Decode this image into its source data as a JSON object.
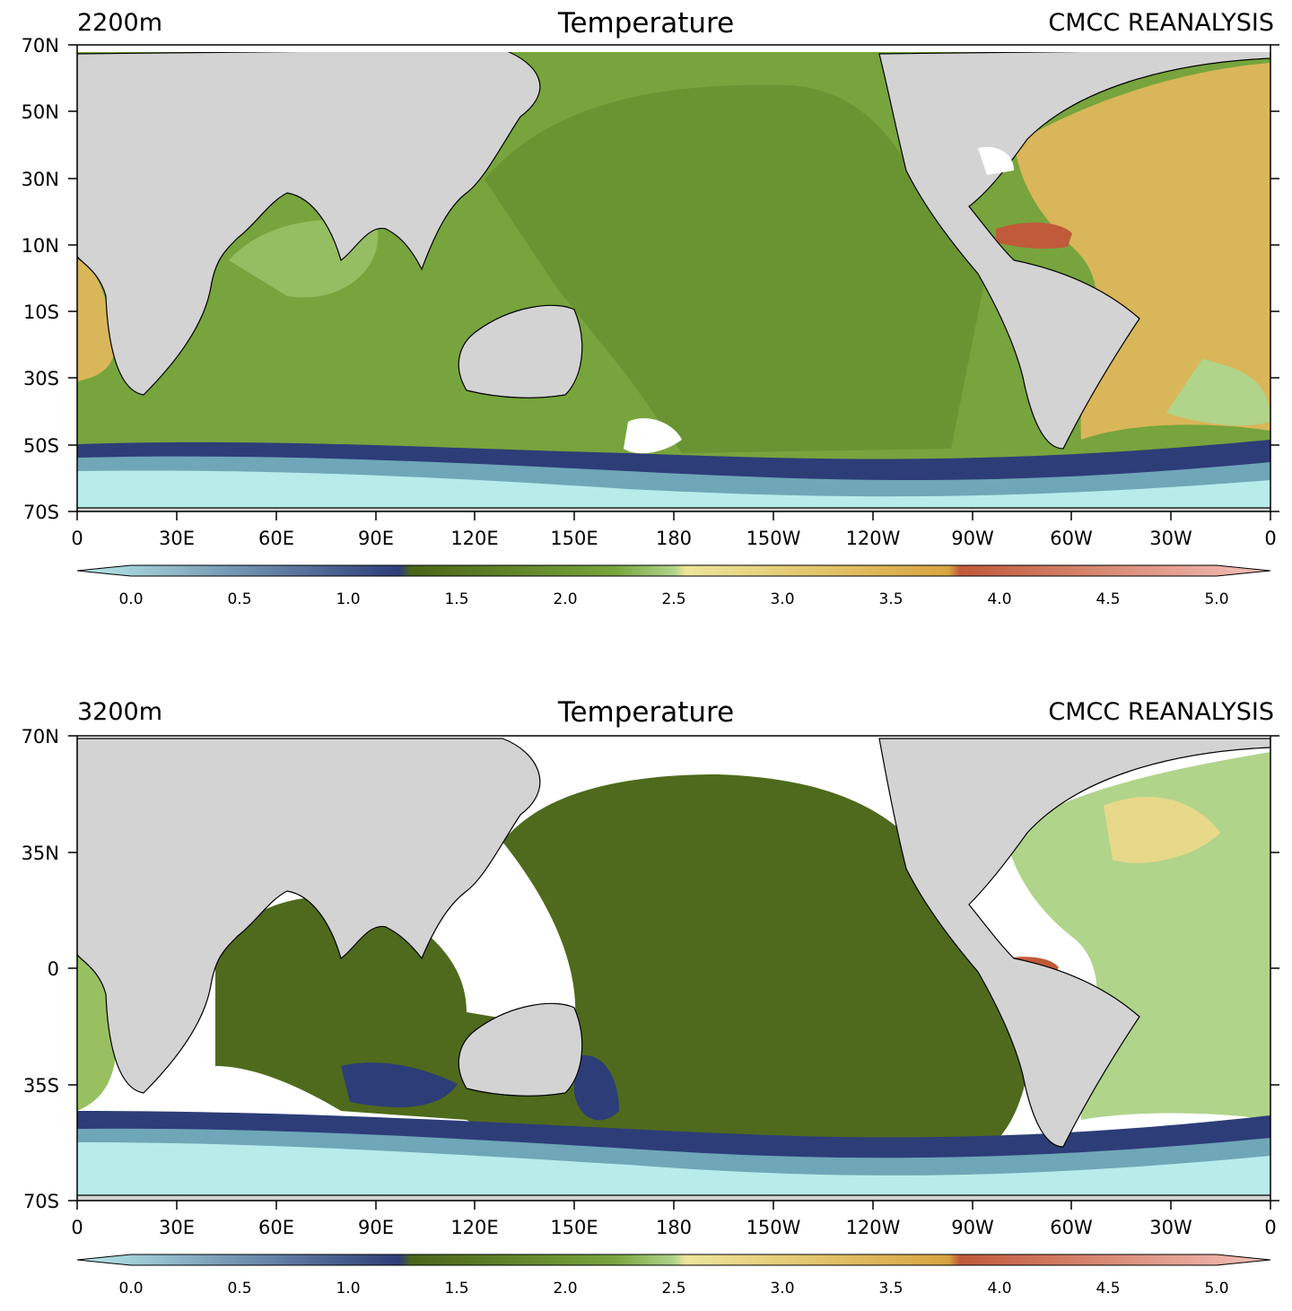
{
  "panels": [
    {
      "depth_label": "2200m",
      "title": "Temperature",
      "source": "CMCC REANALYSIS",
      "lat_ticks": [
        "70N",
        "50N",
        "30N",
        "10N",
        "10S",
        "30S",
        "50S",
        "70S"
      ],
      "lon_ticks": [
        "0",
        "30E",
        "60E",
        "90E",
        "120E",
        "150E",
        "180",
        "150W",
        "120W",
        "90W",
        "60W",
        "30W",
        "0"
      ],
      "colorbar_ticks": [
        "0.0",
        "0.5",
        "1.0",
        "1.5",
        "2.0",
        "2.5",
        "3.0",
        "3.5",
        "4.0",
        "4.5",
        "5.0"
      ]
    },
    {
      "depth_label": "3200m",
      "title": "Temperature",
      "source": "CMCC REANALYSIS",
      "lat_ticks": [
        "70N",
        "35N",
        "0",
        "35S",
        "70S"
      ],
      "lon_ticks": [
        "0",
        "30E",
        "60E",
        "90E",
        "120E",
        "150E",
        "180",
        "150W",
        "120W",
        "90W",
        "60W",
        "30W",
        "0"
      ],
      "colorbar_ticks": [
        "0.0",
        "0.5",
        "1.0",
        "1.5",
        "2.0",
        "2.5",
        "3.0",
        "3.5",
        "4.0",
        "4.5",
        "5.0"
      ]
    }
  ],
  "colors": {
    "land": "#d3d3d3",
    "coast": "#000000",
    "cold": "#b8ecea",
    "deep_blue": "#2d3d78",
    "dark_green": "#4a6418",
    "mid_green": "#77a43c",
    "light_green": "#b0d48a",
    "yellow": "#e8d88a",
    "ochre": "#d8b050",
    "rust": "#c05a3a",
    "pink": "#f4c0b8"
  }
}
